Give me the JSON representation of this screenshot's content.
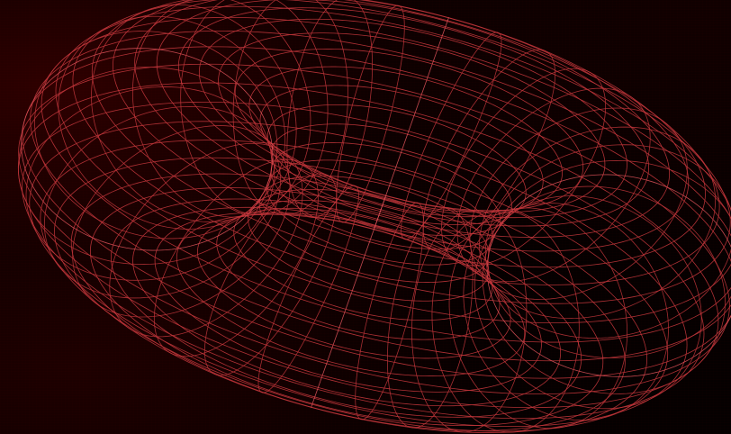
{
  "scene": {
    "subject": "wireframe-torus",
    "colors": {
      "background": "#050000",
      "wire": "#c0353a",
      "wire_highlight": "#e0545a"
    },
    "mesh": {
      "major_segments": 36,
      "minor_segments": 36
    }
  }
}
